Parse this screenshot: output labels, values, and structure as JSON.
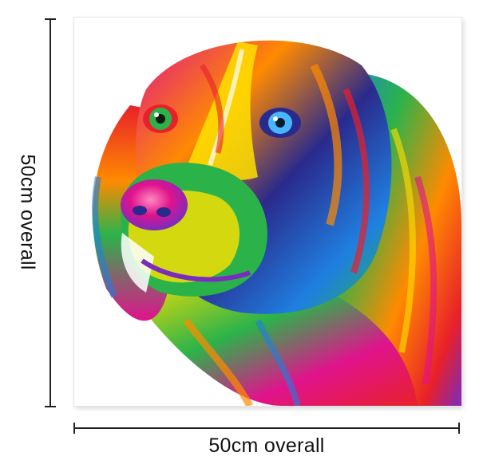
{
  "dimensions": {
    "width_label": "50cm overall",
    "height_label": "50cm overall"
  },
  "artwork": {
    "subject": "dog-portrait-icon",
    "palette": [
      "#e8202a",
      "#ff8a00",
      "#ffe100",
      "#2bb34a",
      "#1f7fe0",
      "#2a2a8c",
      "#e0138c",
      "#7a2cc0"
    ]
  }
}
